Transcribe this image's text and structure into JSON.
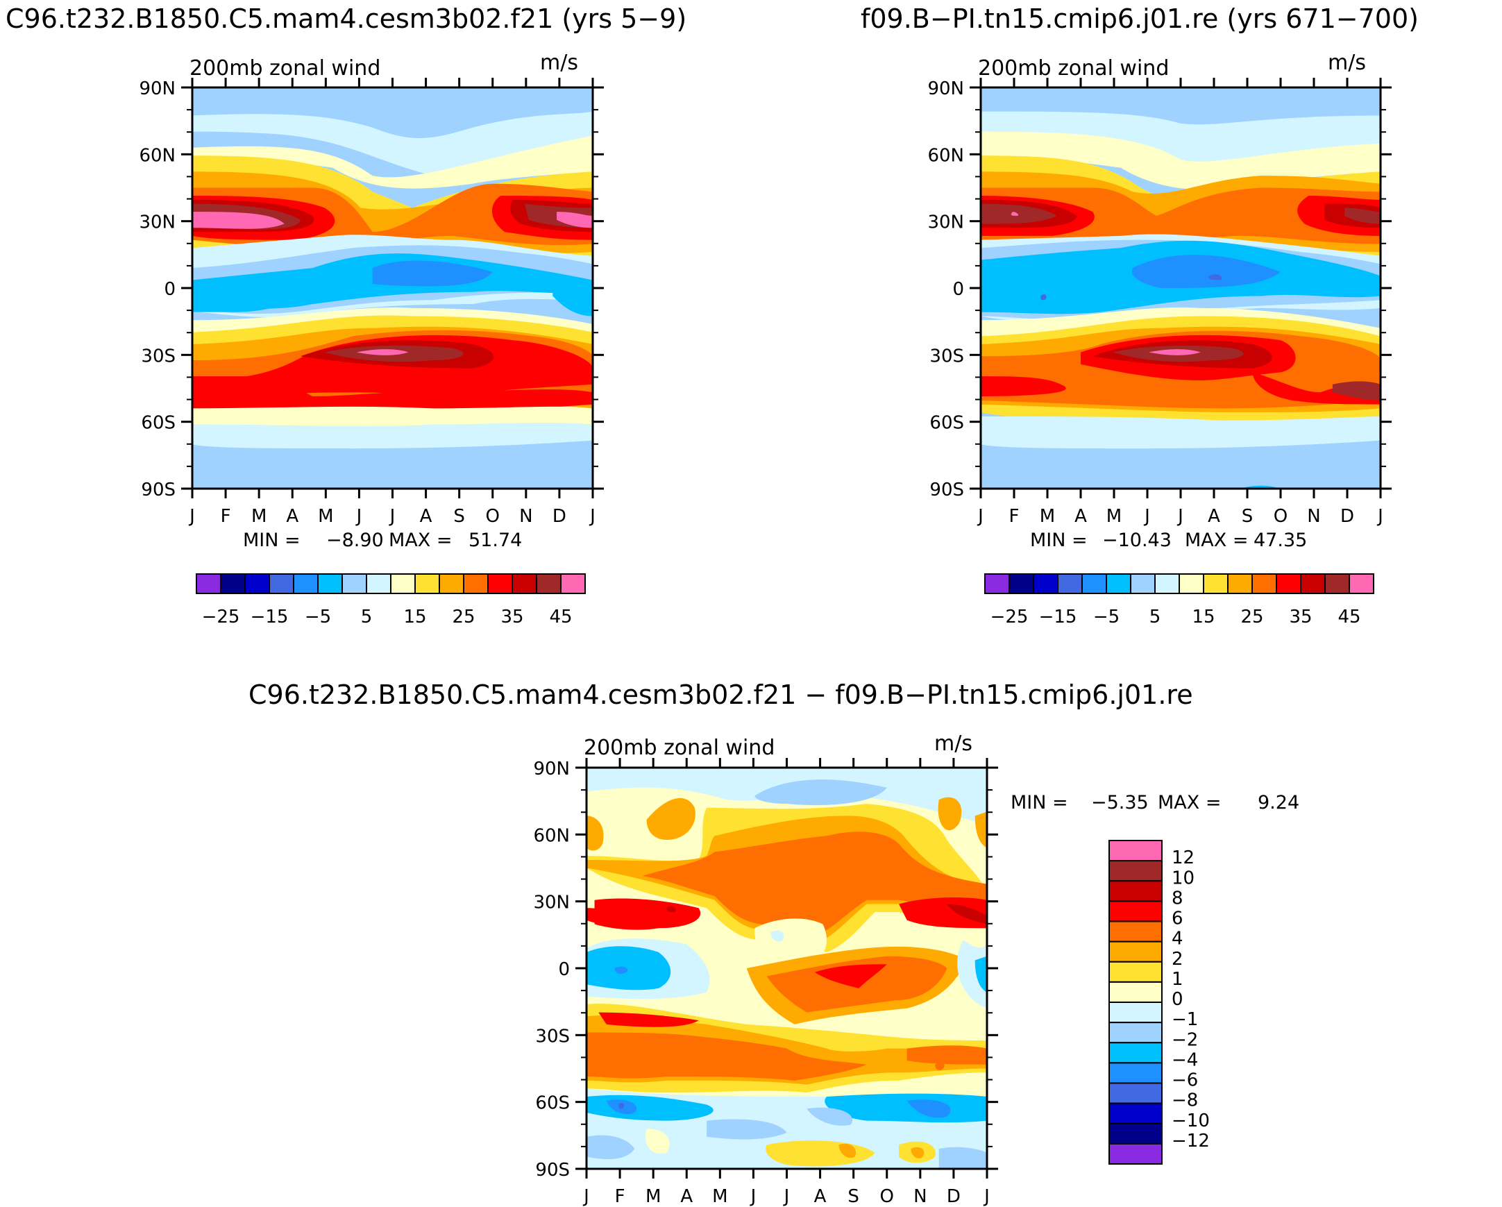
{
  "panels": [
    {
      "title": "C96.t232.B1850.C5.mam4.cesm3b02.f21 (yrs 5−9)",
      "stats": {
        "min_label": "MIN =",
        "min": "−8.90",
        "max_label": "MAX =",
        "max": "51.74"
      }
    },
    {
      "title": "f09.B−PI.tn15.cmip6.j01.re (yrs 671−700)",
      "stats": {
        "min_label": "MIN =",
        "min": "−10.43",
        "max_label": "MAX =",
        "max": "47.35"
      }
    },
    {
      "title": "C96.t232.B1850.C5.mam4.cesm3b02.f21 − f09.B−PI.tn15.cmip6.j01.re",
      "stats": {
        "min_label": "MIN =",
        "min": "−5.35",
        "max_label": "MAX =",
        "max": "9.24"
      }
    }
  ],
  "chart_data": [
    {
      "type": "heatmap",
      "title": "200mb zonal wind",
      "units": "m/s",
      "x_ticks": [
        "J",
        "F",
        "M",
        "A",
        "M",
        "J",
        "J",
        "A",
        "S",
        "O",
        "N",
        "D",
        "J"
      ],
      "y_ticks": [
        "90N",
        "60N",
        "30N",
        "0",
        "30S",
        "60S",
        "90S"
      ],
      "colorbar": {
        "orientation": "horizontal",
        "levels_shown": [
          "−25",
          "−15",
          "−5",
          "5",
          "15",
          "25",
          "35",
          "45"
        ],
        "colors": [
          "#8a2be2",
          "#00008b",
          "#0000cd",
          "#4169e1",
          "#1e90ff",
          "#00bfff",
          "#a0d2ff",
          "#d2f5ff",
          "#ffffc8",
          "#ffe132",
          "#ffaa00",
          "#ff6e00",
          "#ff0000",
          "#c80000",
          "#a02828",
          "#ff69b4"
        ]
      },
      "stats": {
        "min": -8.9,
        "max": 51.74
      }
    },
    {
      "type": "heatmap",
      "title": "200mb zonal wind",
      "units": "m/s",
      "x_ticks": [
        "J",
        "F",
        "M",
        "A",
        "M",
        "J",
        "J",
        "A",
        "S",
        "O",
        "N",
        "D",
        "J"
      ],
      "y_ticks": [
        "90N",
        "60N",
        "30N",
        "0",
        "30S",
        "60S",
        "90S"
      ],
      "colorbar": {
        "orientation": "horizontal",
        "levels_shown": [
          "−25",
          "−15",
          "−5",
          "5",
          "15",
          "25",
          "35",
          "45"
        ],
        "colors": [
          "#8a2be2",
          "#00008b",
          "#0000cd",
          "#4169e1",
          "#1e90ff",
          "#00bfff",
          "#a0d2ff",
          "#d2f5ff",
          "#ffffc8",
          "#ffe132",
          "#ffaa00",
          "#ff6e00",
          "#ff0000",
          "#c80000",
          "#a02828",
          "#ff69b4"
        ]
      },
      "stats": {
        "min": -10.43,
        "max": 47.35
      }
    },
    {
      "type": "heatmap",
      "title": "200mb zonal wind",
      "units": "m/s",
      "x_ticks": [
        "J",
        "F",
        "M",
        "A",
        "M",
        "J",
        "J",
        "A",
        "S",
        "O",
        "N",
        "D",
        "J"
      ],
      "y_ticks": [
        "90N",
        "60N",
        "30N",
        "0",
        "30S",
        "60S",
        "90S"
      ],
      "colorbar": {
        "orientation": "vertical",
        "levels_shown": [
          "12",
          "10",
          "8",
          "6",
          "4",
          "2",
          "1",
          "0",
          "−1",
          "−2",
          "−4",
          "−6",
          "−8",
          "−10",
          "−12"
        ],
        "colors": [
          "#ff69b4",
          "#a02828",
          "#c80000",
          "#ff0000",
          "#ff6e00",
          "#ffaa00",
          "#ffe132",
          "#ffffc8",
          "#d2f5ff",
          "#a0d2ff",
          "#00bfff",
          "#1e90ff",
          "#4169e1",
          "#0000cd",
          "#00008b",
          "#8a2be2"
        ]
      },
      "stats": {
        "min": -5.35,
        "max": 9.24
      }
    }
  ]
}
